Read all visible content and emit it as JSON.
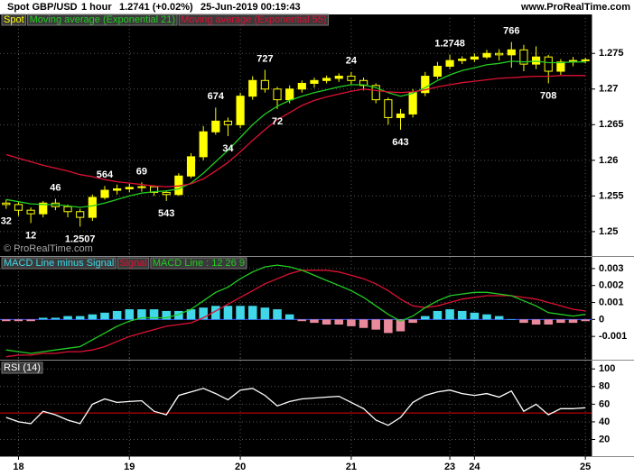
{
  "header": {
    "instrument": "Spot GBP/USD",
    "interval": "1 hour",
    "price": "1.2741 (+0.02%)",
    "timestamp": "25-Jun-2019 00:19:43",
    "website": "www.ProRealTime.com"
  },
  "chart_data": [
    {
      "type": "candlestick",
      "name": "Spot",
      "color": "#ffff00",
      "watermark": "© ProRealTime.com",
      "categories": [
        null,
        "18",
        null,
        null,
        null,
        null,
        null,
        null,
        null,
        null,
        "19",
        null,
        null,
        null,
        null,
        null,
        null,
        null,
        null,
        "20",
        null,
        null,
        null,
        null,
        null,
        null,
        null,
        null,
        "21",
        null,
        null,
        null,
        null,
        null,
        null,
        null,
        "23",
        null,
        "24",
        null,
        null,
        null,
        null,
        null,
        null,
        null,
        null,
        "25"
      ],
      "open": [
        1.254,
        1.2538,
        1.253,
        1.2525,
        1.254,
        1.2535,
        1.2528,
        1.252,
        1.2548,
        1.2558,
        1.256,
        1.2562,
        1.2563,
        1.2555,
        1.2552,
        1.2578,
        1.2605,
        1.264,
        1.2655,
        1.265,
        1.269,
        1.2712,
        1.27,
        1.2685,
        1.27,
        1.2708,
        1.2712,
        1.2715,
        1.2718,
        1.2712,
        1.2705,
        1.2685,
        1.266,
        1.2665,
        1.2695,
        1.2718,
        1.2732,
        1.274,
        1.2742,
        1.2745,
        1.275,
        1.2748,
        1.2755,
        1.2735,
        1.2745,
        1.2725,
        1.2738,
        1.274
      ],
      "high": [
        1.2545,
        1.2541,
        1.2534,
        1.2543,
        1.2546,
        1.2538,
        1.2532,
        1.2552,
        1.2564,
        1.2566,
        1.2567,
        1.2569,
        1.2565,
        1.2558,
        1.2582,
        1.261,
        1.2648,
        1.2674,
        1.266,
        1.2695,
        1.2718,
        1.2727,
        1.2703,
        1.2705,
        1.2712,
        1.2716,
        1.2719,
        1.2722,
        1.2724,
        1.2716,
        1.2708,
        1.2688,
        1.2672,
        1.27,
        1.2724,
        1.2738,
        1.2748,
        1.2746,
        1.275,
        1.2755,
        1.2756,
        1.2766,
        1.2762,
        1.276,
        1.2748,
        1.2742,
        1.2745,
        1.2744
      ],
      "low": [
        1.2532,
        1.2522,
        1.2512,
        1.252,
        1.253,
        1.252,
        1.2507,
        1.2515,
        1.2545,
        1.2552,
        1.2555,
        1.2556,
        1.255,
        1.2543,
        1.255,
        1.2575,
        1.26,
        1.2636,
        1.2634,
        1.2645,
        1.2685,
        1.2695,
        1.2672,
        1.268,
        1.2695,
        1.2702,
        1.2708,
        1.271,
        1.2706,
        1.2698,
        1.268,
        1.265,
        1.2643,
        1.266,
        1.269,
        1.2714,
        1.2728,
        1.2735,
        1.2738,
        1.2742,
        1.274,
        1.273,
        1.2725,
        1.2728,
        1.2708,
        1.272,
        1.2732,
        1.2736
      ],
      "close": [
        1.2538,
        1.253,
        1.2525,
        1.254,
        1.2535,
        1.2528,
        1.252,
        1.2548,
        1.2558,
        1.256,
        1.2562,
        1.2563,
        1.2555,
        1.2552,
        1.2578,
        1.2605,
        1.264,
        1.2655,
        1.265,
        1.269,
        1.2712,
        1.27,
        1.2685,
        1.27,
        1.2708,
        1.2712,
        1.2715,
        1.2718,
        1.2712,
        1.2705,
        1.2685,
        1.266,
        1.2665,
        1.2695,
        1.2718,
        1.2732,
        1.274,
        1.2742,
        1.2745,
        1.275,
        1.2748,
        1.2755,
        1.2735,
        1.2745,
        1.2725,
        1.2738,
        1.274,
        1.2741
      ],
      "series": [
        {
          "name": "Moving average (Exponential 21)",
          "color": "#22cc22",
          "values": [
            1.2545,
            1.2542,
            1.2539,
            1.2538,
            1.2538,
            1.2536,
            1.2534,
            1.2536,
            1.254,
            1.2545,
            1.255,
            1.2554,
            1.2556,
            1.2557,
            1.256,
            1.2568,
            1.2582,
            1.2598,
            1.2614,
            1.2632,
            1.265,
            1.2665,
            1.2676,
            1.2684,
            1.269,
            1.2695,
            1.2699,
            1.2703,
            1.2706,
            1.2706,
            1.2702,
            1.2695,
            1.269,
            1.2694,
            1.2702,
            1.2712,
            1.272,
            1.2726,
            1.273,
            1.2734,
            1.2736,
            1.2739,
            1.2738,
            1.2739,
            1.2737,
            1.2737,
            1.2738,
            1.2738
          ]
        },
        {
          "name": "Moving average (Exponential 55)",
          "color": "#dd1133",
          "values": [
            1.2608,
            1.2603,
            1.2598,
            1.2593,
            1.2589,
            1.2585,
            1.258,
            1.2577,
            1.2573,
            1.257,
            1.2568,
            1.2566,
            1.2564,
            1.2563,
            1.2564,
            1.2567,
            1.2574,
            1.2585,
            1.2597,
            1.2612,
            1.2628,
            1.2643,
            1.2657,
            1.2667,
            1.2677,
            1.2684,
            1.2689,
            1.2693,
            1.2697,
            1.27,
            1.2698,
            1.2696,
            1.2695,
            1.2696,
            1.2699,
            1.2703,
            1.2706,
            1.2709,
            1.2711,
            1.2713,
            1.2715,
            1.2716,
            1.2717,
            1.2718,
            1.2718,
            1.2719,
            1.2719,
            1.2719
          ]
        }
      ],
      "annotations": [
        "32",
        "12",
        "46",
        "1.2507",
        "564",
        "69",
        "543",
        "674",
        "34",
        "727",
        "72",
        "24",
        "643",
        "1.2748",
        "766",
        "708"
      ],
      "ylim": [
        1.2467,
        1.2787
      ],
      "yticks": [
        1.25,
        1.255,
        1.26,
        1.265,
        1.27,
        1.275
      ],
      "grid": true
    },
    {
      "type": "macd",
      "series": [
        {
          "name": "MACD Line minus Signal",
          "kind": "bar",
          "color": "#40d8e8",
          "negative_color": "#e88a9c",
          "values": [
            -0.0001,
            -0.0001,
            -0.0001,
            0.0001,
            0.0001,
            0.0002,
            0.0002,
            0.0003,
            0.0004,
            0.0005,
            0.0006,
            0.0006,
            0.0006,
            0.0005,
            0.0005,
            0.0006,
            0.0007,
            0.0008,
            0.0008,
            0.0008,
            0.0008,
            0.0007,
            0.0006,
            0.0003,
            -0.0001,
            -0.0002,
            -0.0003,
            -0.0003,
            -0.0004,
            -0.0005,
            -0.0006,
            -0.0008,
            -0.0007,
            -0.0002,
            0.0002,
            0.0005,
            0.0006,
            0.0005,
            0.0004,
            0.0003,
            0.0002,
            0,
            -0.0002,
            -0.0003,
            -0.0003,
            -0.0002,
            -0.0002,
            -0.0001
          ]
        },
        {
          "name": "Signal",
          "kind": "line",
          "color": "#dd1133",
          "values": [
            -0.0022,
            -0.0021,
            -0.0021,
            -0.002,
            -0.002,
            -0.0019,
            -0.0019,
            -0.0018,
            -0.0016,
            -0.0013,
            -0.001,
            -0.0008,
            -0.0006,
            -0.0004,
            -0.0003,
            -0.0002,
            0.0001,
            0.0005,
            0.0009,
            0.0013,
            0.0017,
            0.0021,
            0.0024,
            0.0027,
            0.0029,
            0.0029,
            0.0029,
            0.0028,
            0.0026,
            0.0024,
            0.0021,
            0.0017,
            0.0012,
            0.0008,
            0.0007,
            0.0008,
            0.001,
            0.0012,
            0.0013,
            0.0014,
            0.0014,
            0.0014,
            0.0013,
            0.0012,
            0.001,
            0.0008,
            0.0006,
            0.0005
          ]
        },
        {
          "name": "MACD Line : 12 26 9",
          "kind": "line",
          "color": "#22cc22",
          "values": [
            -0.0018,
            -0.0019,
            -0.002,
            -0.0019,
            -0.0018,
            -0.0017,
            -0.0016,
            -0.0012,
            -0.0008,
            -0.0004,
            -0.0001,
            0.0001,
            0.0001,
            0.0001,
            0.0003,
            0.0006,
            0.0011,
            0.0016,
            0.0019,
            0.0024,
            0.0028,
            0.0031,
            0.0032,
            0.0031,
            0.0029,
            0.0026,
            0.0023,
            0.002,
            0.0017,
            0.0013,
            0.0008,
            0.0003,
            -0.0001,
            0.0002,
            0.0007,
            0.0011,
            0.0014,
            0.0015,
            0.0016,
            0.0016,
            0.0015,
            0.0014,
            0.0011,
            0.0008,
            0.0004,
            0.0003,
            0.0002,
            0.0003
          ]
        }
      ],
      "hline": {
        "value": 0,
        "color": "#3050ff"
      },
      "ylim": [
        -0.00232,
        0.00358
      ],
      "yticks": [
        0.003,
        0.002,
        0.001,
        0,
        -0.001
      ],
      "grid": true
    },
    {
      "type": "line",
      "series": [
        {
          "name": "RSI (14)",
          "color": "#ffffff",
          "values": [
            45,
            40,
            38,
            52,
            48,
            42,
            38,
            60,
            66,
            62,
            63,
            64,
            52,
            48,
            70,
            74,
            78,
            72,
            65,
            76,
            78,
            70,
            58,
            63,
            66,
            67,
            68,
            69,
            62,
            55,
            42,
            36,
            45,
            62,
            70,
            74,
            76,
            72,
            70,
            72,
            68,
            75,
            52,
            60,
            48,
            55,
            55,
            56
          ]
        }
      ],
      "hline": {
        "value": 50,
        "color": "#e00000"
      },
      "ylim": [
        2.1,
        107.4
      ],
      "yticks": [
        100,
        80,
        60,
        40,
        20
      ],
      "grid": true
    }
  ]
}
